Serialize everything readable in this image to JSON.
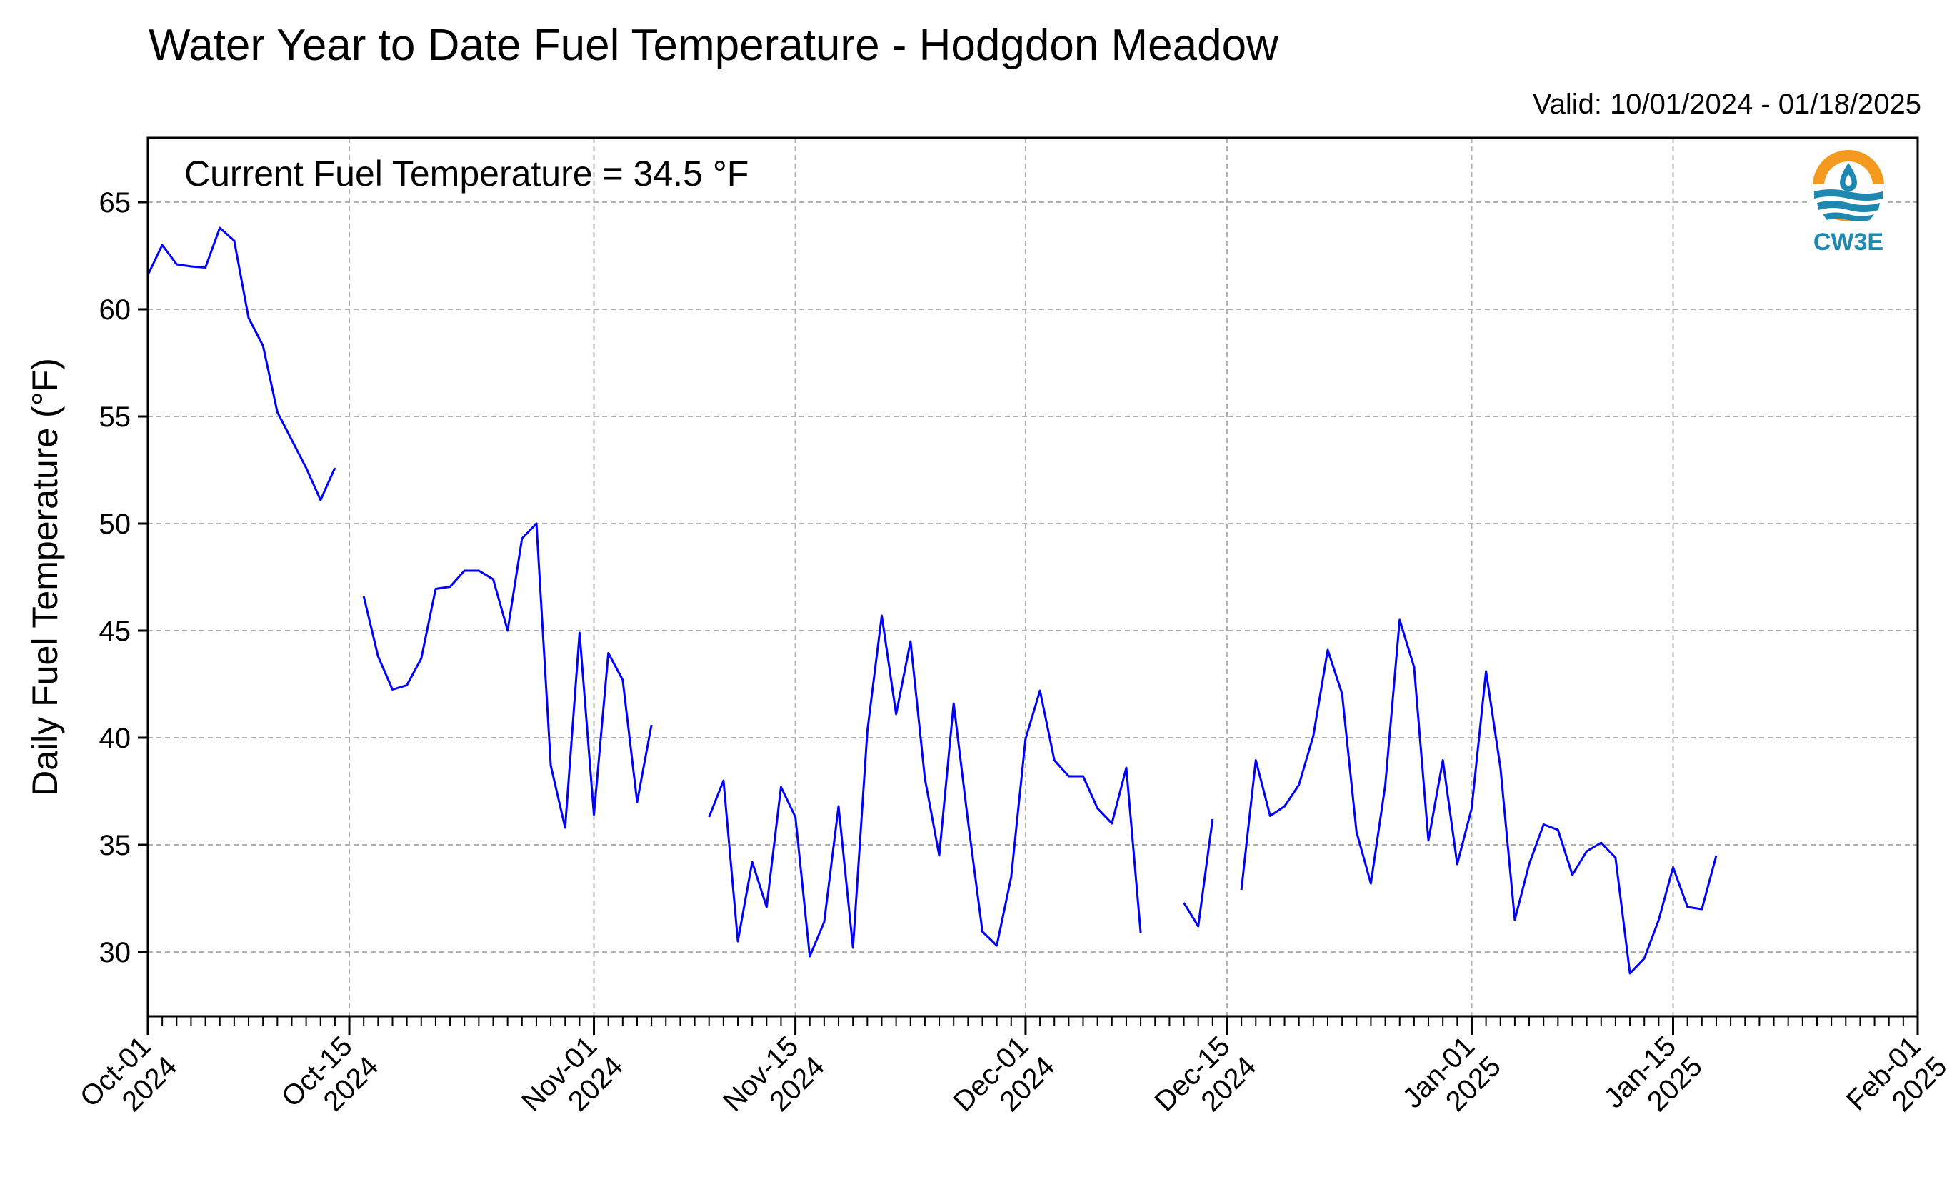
{
  "header": {
    "title": "Water Year to Date Fuel Temperature - Hodgdon Meadow",
    "valid": "Valid: 10/01/2024 - 01/18/2025"
  },
  "annotation": {
    "current": "Current Fuel Temperature = 34.5  °F"
  },
  "logo": {
    "text": "CW3E",
    "icon": "water-drop-sun-logo",
    "colors": {
      "sun": "#f39a1e",
      "water": "#1e88b0"
    }
  },
  "chart_data": {
    "type": "line",
    "title": "Water Year to Date Fuel Temperature - Hodgdon Meadow",
    "xlabel": "",
    "ylabel": "Daily Fuel Temperature (°F)",
    "ylim": [
      27,
      68
    ],
    "xlim": [
      "2024-10-01",
      "2025-02-01"
    ],
    "yticks": [
      30,
      35,
      40,
      45,
      50,
      55,
      60,
      65
    ],
    "xticks": [
      {
        "date": "2024-10-01",
        "label": [
          "Oct-01",
          "2024"
        ]
      },
      {
        "date": "2024-10-15",
        "label": [
          "Oct-15",
          "2024"
        ]
      },
      {
        "date": "2024-11-01",
        "label": [
          "Nov-01",
          "2024"
        ]
      },
      {
        "date": "2024-11-15",
        "label": [
          "Nov-15",
          "2024"
        ]
      },
      {
        "date": "2024-12-01",
        "label": [
          "Dec-01",
          "2024"
        ]
      },
      {
        "date": "2024-12-15",
        "label": [
          "Dec-15",
          "2024"
        ]
      },
      {
        "date": "2025-01-01",
        "label": [
          "Jan-01",
          "2025"
        ]
      },
      {
        "date": "2025-01-15",
        "label": [
          "Jan-15",
          "2025"
        ]
      },
      {
        "date": "2025-02-01",
        "label": [
          "Feb-01",
          "2025"
        ]
      }
    ],
    "grid": true,
    "line_color": "#0000ff",
    "segments": [
      [
        [
          "2024-10-01",
          61.6
        ],
        [
          "2024-10-02",
          63.0
        ],
        [
          "2024-10-03",
          62.1
        ],
        [
          "2024-10-04",
          62.0
        ],
        [
          "2024-10-05",
          61.95
        ],
        [
          "2024-10-06",
          63.8
        ],
        [
          "2024-10-07",
          63.2
        ],
        [
          "2024-10-08",
          59.6
        ],
        [
          "2024-10-09",
          58.3
        ],
        [
          "2024-10-10",
          55.2
        ],
        [
          "2024-10-11",
          53.9
        ],
        [
          "2024-10-12",
          52.6
        ],
        [
          "2024-10-13",
          51.1
        ],
        [
          "2024-10-14",
          52.6
        ]
      ],
      [
        [
          "2024-10-16",
          46.6
        ],
        [
          "2024-10-17",
          43.8
        ],
        [
          "2024-10-18",
          42.25
        ],
        [
          "2024-10-19",
          42.45
        ],
        [
          "2024-10-20",
          43.7
        ],
        [
          "2024-10-21",
          46.95
        ],
        [
          "2024-10-22",
          47.05
        ],
        [
          "2024-10-23",
          47.8
        ],
        [
          "2024-10-24",
          47.8
        ],
        [
          "2024-10-25",
          47.4
        ],
        [
          "2024-10-26",
          45.0
        ],
        [
          "2024-10-27",
          49.3
        ],
        [
          "2024-10-28",
          50.0
        ],
        [
          "2024-10-29",
          38.7
        ],
        [
          "2024-10-30",
          35.8
        ],
        [
          "2024-10-31",
          44.9
        ],
        [
          "2024-11-01",
          36.4
        ],
        [
          "2024-11-02",
          43.95
        ],
        [
          "2024-11-03",
          42.7
        ],
        [
          "2024-11-04",
          37.0
        ],
        [
          "2024-11-05",
          40.6
        ]
      ],
      [
        [
          "2024-11-09",
          36.3
        ],
        [
          "2024-11-10",
          38.0
        ],
        [
          "2024-11-11",
          30.5
        ],
        [
          "2024-11-12",
          34.2
        ],
        [
          "2024-11-13",
          32.1
        ],
        [
          "2024-11-14",
          37.7
        ],
        [
          "2024-11-15",
          36.3
        ],
        [
          "2024-11-16",
          29.8
        ],
        [
          "2024-11-17",
          31.4
        ],
        [
          "2024-11-18",
          36.8
        ],
        [
          "2024-11-19",
          30.2
        ],
        [
          "2024-11-20",
          40.3
        ],
        [
          "2024-11-21",
          45.7
        ],
        [
          "2024-11-22",
          41.1
        ],
        [
          "2024-11-23",
          44.5
        ],
        [
          "2024-11-24",
          38.1
        ],
        [
          "2024-11-25",
          34.5
        ],
        [
          "2024-11-26",
          41.6
        ],
        [
          "2024-11-27",
          36.1
        ],
        [
          "2024-11-28",
          30.95
        ],
        [
          "2024-11-29",
          30.3
        ],
        [
          "2024-11-30",
          33.5
        ],
        [
          "2024-12-01",
          39.95
        ],
        [
          "2024-12-02",
          42.2
        ],
        [
          "2024-12-03",
          38.95
        ],
        [
          "2024-12-04",
          38.2
        ],
        [
          "2024-12-05",
          38.2
        ],
        [
          "2024-12-06",
          36.7
        ],
        [
          "2024-12-07",
          36.0
        ],
        [
          "2024-12-08",
          38.6
        ],
        [
          "2024-12-09",
          30.9
        ]
      ],
      [
        [
          "2024-12-12",
          32.3
        ],
        [
          "2024-12-13",
          31.2
        ],
        [
          "2024-12-14",
          36.2
        ]
      ],
      [
        [
          "2024-12-16",
          32.9
        ],
        [
          "2024-12-17",
          38.95
        ],
        [
          "2024-12-18",
          36.35
        ],
        [
          "2024-12-19",
          36.8
        ],
        [
          "2024-12-20",
          37.8
        ],
        [
          "2024-12-21",
          40.1
        ],
        [
          "2024-12-22",
          44.1
        ],
        [
          "2024-12-23",
          42.05
        ],
        [
          "2024-12-24",
          35.6
        ],
        [
          "2024-12-25",
          33.2
        ],
        [
          "2024-12-26",
          37.8
        ],
        [
          "2024-12-27",
          45.5
        ],
        [
          "2024-12-28",
          43.3
        ],
        [
          "2024-12-29",
          35.2
        ],
        [
          "2024-12-30",
          38.95
        ],
        [
          "2024-12-31",
          34.1
        ],
        [
          "2025-01-01",
          36.7
        ],
        [
          "2025-01-02",
          43.1
        ],
        [
          "2025-01-03",
          38.6
        ],
        [
          "2025-01-04",
          31.5
        ],
        [
          "2025-01-05",
          34.1
        ],
        [
          "2025-01-06",
          35.95
        ],
        [
          "2025-01-07",
          35.7
        ],
        [
          "2025-01-08",
          33.6
        ],
        [
          "2025-01-09",
          34.7
        ],
        [
          "2025-01-10",
          35.1
        ],
        [
          "2025-01-11",
          34.4
        ],
        [
          "2025-01-12",
          29.0
        ],
        [
          "2025-01-13",
          29.7
        ],
        [
          "2025-01-14",
          31.5
        ],
        [
          "2025-01-15",
          33.95
        ],
        [
          "2025-01-16",
          32.1
        ],
        [
          "2025-01-17",
          32.0
        ],
        [
          "2025-01-18",
          34.5
        ]
      ]
    ]
  }
}
